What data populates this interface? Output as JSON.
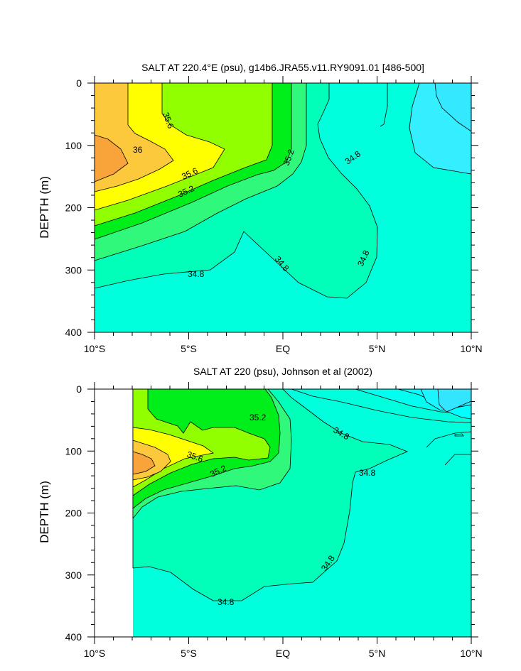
{
  "chart_data": [
    {
      "type": "heatmap",
      "subtype": "filled-contour",
      "title": "SALT AT 220.4°E (psu), g14b6.JRA55.v11.RY9091.01 [486-500]",
      "xlabel": "",
      "ylabel": "DEPTH (m)",
      "x_ticks": [
        "10°S",
        "5°S",
        "EQ",
        "5°N",
        "10°N"
      ],
      "y_ticks": [
        "0",
        "100",
        "200",
        "300",
        "400"
      ],
      "xlim": [
        -10,
        10
      ],
      "ylim": [
        400,
        0
      ],
      "grid": false,
      "contour_labels": [
        {
          "label": "35.6",
          "x": -5.1,
          "y": 40
        },
        {
          "label": "36",
          "x": -7.4,
          "y": 103
        },
        {
          "label": "35.6",
          "x": -5.2,
          "y": 140
        },
        {
          "label": "35.2",
          "x": -5.0,
          "y": 172
        },
        {
          "label": "35.2",
          "x": 0.5,
          "y": 115
        },
        {
          "label": "34.8",
          "x": 3.6,
          "y": 112
        },
        {
          "label": "34.8",
          "x": -4.7,
          "y": 303
        },
        {
          "label": "34.8",
          "x": -0.2,
          "y": 290
        },
        {
          "label": "34.8",
          "x": 4.7,
          "y": 280
        }
      ],
      "color_levels": [
        {
          "range": ">36.2",
          "color": "#F8A43A"
        },
        {
          "range": "36.0-36.2",
          "color": "#FCC83C"
        },
        {
          "range": "35.6-36.0",
          "color": "#FFFF00"
        },
        {
          "range": "35.4-35.6",
          "color": "#91FF00"
        },
        {
          "range": "35.2-35.4",
          "color": "#00EF1A"
        },
        {
          "range": "35.0-35.2",
          "color": "#2FF87A"
        },
        {
          "range": "34.8-35.0",
          "color": "#00FFB8"
        },
        {
          "range": "34.6-34.8",
          "color": "#00FFDC"
        },
        {
          "range": "<34.6",
          "color": "#33EFFF"
        }
      ]
    },
    {
      "type": "heatmap",
      "subtype": "filled-contour",
      "title": "SALT AT 220 (psu), Johnson et al (2002)",
      "xlabel": "",
      "ylabel": "DEPTH (m)",
      "x_ticks": [
        "10°S",
        "5°S",
        "EQ",
        "5°N",
        "10°N"
      ],
      "y_ticks": [
        "0",
        "100",
        "200",
        "300",
        "400"
      ],
      "xlim": [
        -10,
        10
      ],
      "ylim": [
        400,
        0
      ],
      "grid": false,
      "contour_labels": [
        {
          "label": "35.2",
          "x": -1.2,
          "y": 47
        },
        {
          "label": "34.8",
          "x": 3.0,
          "y": 80
        },
        {
          "label": "35.6",
          "x": -5.1,
          "y": 108
        },
        {
          "label": "35.2",
          "x": -4.1,
          "y": 132
        },
        {
          "label": "34.8",
          "x": 4.5,
          "y": 137
        },
        {
          "label": "34.8",
          "x": 2.7,
          "y": 280
        },
        {
          "label": "34.8",
          "x": -3.2,
          "y": 346
        }
      ]
    }
  ]
}
